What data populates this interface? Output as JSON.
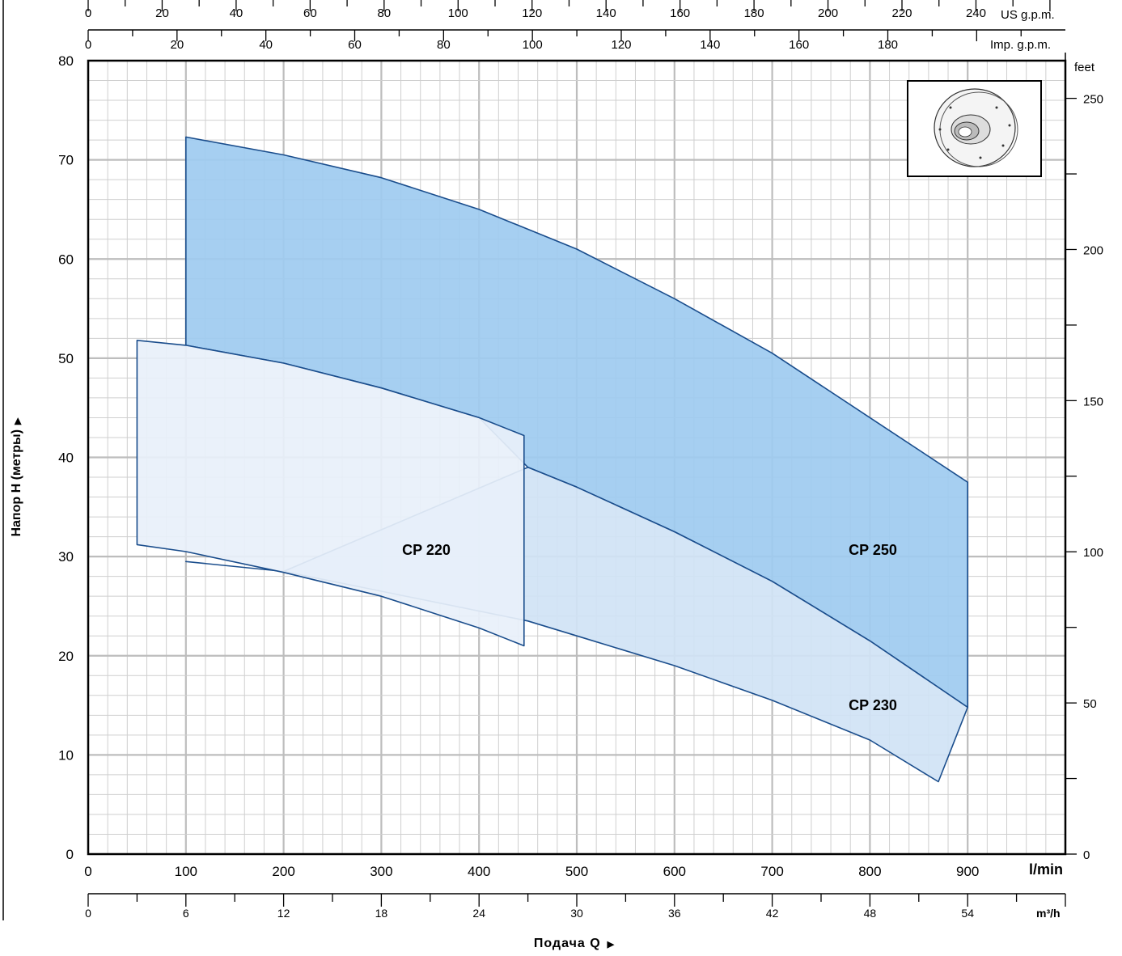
{
  "chart_data": {
    "type": "area",
    "y_label": "Напор H (метры)",
    "x_label": "Подача Q",
    "xlim": [
      0,
      1000
    ],
    "ylim": [
      0,
      80
    ],
    "x_unit_lmin": "l/min",
    "x_unit_m3h": "m³/h",
    "y_unit_feet": "feet",
    "x_unit_usgpm": "US g.p.m.",
    "x_unit_impgpm": "Imp. g.p.m.",
    "x_ticks_lmin": [
      0,
      100,
      200,
      300,
      400,
      500,
      600,
      700,
      800,
      900
    ],
    "x_ticks_m3h": [
      0,
      6,
      12,
      18,
      24,
      30,
      36,
      42,
      48,
      54
    ],
    "x_ticks_usgpm": [
      0,
      20,
      40,
      60,
      80,
      100,
      120,
      140,
      160,
      180,
      200,
      220,
      240
    ],
    "x_ticks_impgpm": [
      0,
      20,
      40,
      60,
      80,
      100,
      120,
      140,
      160,
      180
    ],
    "y_ticks_m": [
      0,
      10,
      20,
      30,
      40,
      50,
      60,
      70,
      80
    ],
    "y_ticks_feet": [
      0,
      50,
      100,
      150,
      200,
      250
    ],
    "grid": true,
    "series": [
      {
        "name": "CP 250",
        "color": "#9ecbf0",
        "upper": [
          [
            100,
            72.3
          ],
          [
            200,
            70.5
          ],
          [
            300,
            68.2
          ],
          [
            400,
            65.0
          ],
          [
            500,
            61.0
          ],
          [
            600,
            56.0
          ],
          [
            700,
            50.5
          ],
          [
            800,
            44.0
          ],
          [
            900,
            37.5
          ]
        ],
        "lower": [
          [
            100,
            51.3
          ],
          [
            200,
            49.5
          ],
          [
            300,
            47.0
          ],
          [
            400,
            44.0
          ],
          [
            450,
            39.0
          ],
          [
            500,
            37.0
          ],
          [
            600,
            32.5
          ],
          [
            700,
            27.5
          ],
          [
            800,
            21.5
          ],
          [
            900,
            14.8
          ]
        ]
      },
      {
        "name": "CP 230",
        "color": "#d0e3f5",
        "upper": [
          [
            100,
            29.5
          ],
          [
            200,
            28.5
          ],
          [
            450,
            39.0
          ],
          [
            500,
            37.0
          ],
          [
            600,
            32.5
          ],
          [
            700,
            27.5
          ],
          [
            800,
            21.5
          ],
          [
            900,
            14.8
          ]
        ],
        "lower": [
          [
            100,
            29.5
          ],
          [
            200,
            28.5
          ],
          [
            300,
            26.5
          ],
          [
            450,
            23.5
          ],
          [
            500,
            22.0
          ],
          [
            600,
            19.0
          ],
          [
            700,
            15.5
          ],
          [
            800,
            11.5
          ],
          [
            870,
            7.3
          ]
        ]
      },
      {
        "name": "CP 220",
        "color": "#e8f0fa",
        "upper": [
          [
            50,
            51.8
          ],
          [
            100,
            51.3
          ],
          [
            200,
            49.5
          ],
          [
            300,
            47.0
          ],
          [
            400,
            44.0
          ],
          [
            446,
            42.2
          ]
        ],
        "lower": [
          [
            50,
            31.2
          ],
          [
            100,
            30.5
          ],
          [
            200,
            28.4
          ],
          [
            300,
            26.0
          ],
          [
            400,
            22.8
          ],
          [
            446,
            21.0
          ]
        ]
      }
    ],
    "labels": {
      "cp220": "CP 220",
      "cp230": "CP 230",
      "cp250": "CP 250"
    }
  },
  "impeller_icon": "pump-impeller-illustration"
}
